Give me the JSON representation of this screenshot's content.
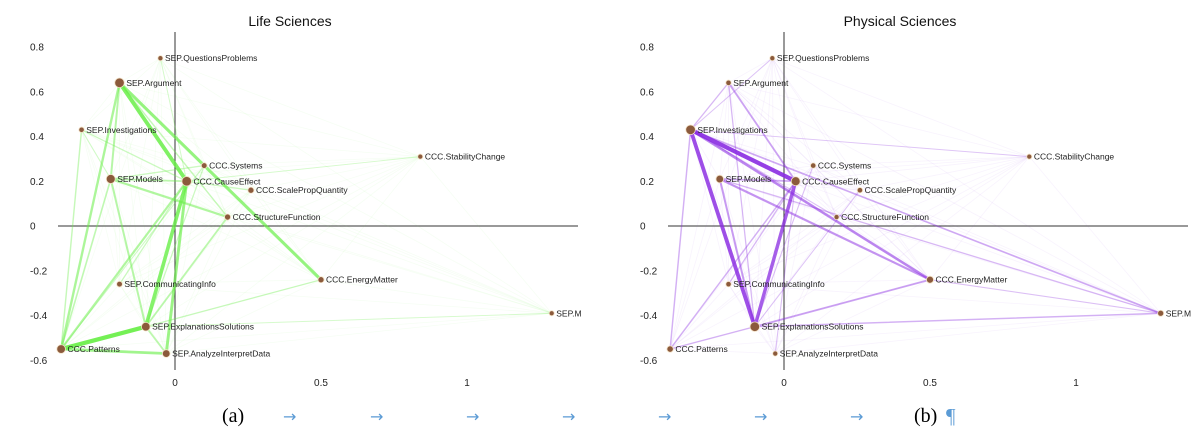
{
  "chart_data": [
    {
      "type": "scatter",
      "title": "Life Sciences",
      "xlim": [
        -0.4,
        1.4
      ],
      "ylim": [
        -0.6,
        0.8
      ],
      "xticks": [
        "0",
        "0.5",
        "1"
      ],
      "yticks": [
        "0.8",
        "0.6",
        "0.4",
        "0.2",
        "0",
        "-0.2",
        "-0.4",
        "-0.6"
      ],
      "grid": false,
      "edge_color": "#66ee44",
      "points": [
        {
          "label": "SEP.QuestionsProblems",
          "x": -0.05,
          "y": 0.75,
          "weight": 0.3
        },
        {
          "label": "SEP.Argument",
          "x": -0.19,
          "y": 0.64,
          "weight": 1.0
        },
        {
          "label": "SEP.Investigations",
          "x": -0.32,
          "y": 0.43,
          "weight": 0.35
        },
        {
          "label": "CCC.Systems",
          "x": 0.1,
          "y": 0.27,
          "weight": 0.4
        },
        {
          "label": "CCC.StabilityChange",
          "x": 0.84,
          "y": 0.31,
          "weight": 0.3
        },
        {
          "label": "SEP.Models",
          "x": -0.22,
          "y": 0.21,
          "weight": 0.9
        },
        {
          "label": "CCC.CauseEffect",
          "x": 0.04,
          "y": 0.2,
          "weight": 1.0
        },
        {
          "label": "CCC.ScalePropQuantity",
          "x": 0.26,
          "y": 0.16,
          "weight": 0.45
        },
        {
          "label": "CCC.StructureFunction",
          "x": 0.18,
          "y": 0.04,
          "weight": 0.45
        },
        {
          "label": "CCC.EnergyMatter",
          "x": 0.5,
          "y": -0.24,
          "weight": 0.45
        },
        {
          "label": "SEP.CommunicatingInfo",
          "x": -0.19,
          "y": -0.26,
          "weight": 0.4
        },
        {
          "label": "SEP.M",
          "x": 1.29,
          "y": -0.39,
          "weight": 0.3
        },
        {
          "label": "SEP.ExplanationsSolutions",
          "x": -0.1,
          "y": -0.45,
          "weight": 0.85
        },
        {
          "label": "CCC.Patterns",
          "x": -0.39,
          "y": -0.55,
          "weight": 0.85
        },
        {
          "label": "SEP.AnalyzeInterpretData",
          "x": -0.03,
          "y": -0.57,
          "weight": 0.7
        }
      ],
      "edges": [
        {
          "source": "SEP.Argument",
          "target": "CCC.CauseEffect",
          "weight": 0.9
        },
        {
          "source": "SEP.Argument",
          "target": "CCC.EnergyMatter",
          "weight": 0.7
        },
        {
          "source": "SEP.Argument",
          "target": "SEP.Models",
          "weight": 0.4
        },
        {
          "source": "SEP.Argument",
          "target": "CCC.Patterns",
          "weight": 0.5
        },
        {
          "source": "SEP.Argument",
          "target": "CCC.StructureFunction",
          "weight": 0.25
        },
        {
          "source": "CCC.CauseEffect",
          "target": "SEP.ExplanationsSolutions",
          "weight": 0.85
        },
        {
          "source": "CCC.CauseEffect",
          "target": "SEP.AnalyzeInterpretData",
          "weight": 0.65
        },
        {
          "source": "CCC.CauseEffect",
          "target": "CCC.Patterns",
          "weight": 0.45
        },
        {
          "source": "CCC.CauseEffect",
          "target": "SEP.Models",
          "weight": 0.35
        },
        {
          "source": "CCC.CauseEffect",
          "target": "CCC.ScalePropQuantity",
          "weight": 0.2
        },
        {
          "source": "SEP.ExplanationsSolutions",
          "target": "CCC.Patterns",
          "weight": 1.0
        },
        {
          "source": "CCC.Patterns",
          "target": "SEP.AnalyzeInterpretData",
          "weight": 0.6
        },
        {
          "source": "SEP.Models",
          "target": "CCC.StructureFunction",
          "weight": 0.45
        },
        {
          "source": "SEP.Models",
          "target": "SEP.ExplanationsSolutions",
          "weight": 0.4
        },
        {
          "source": "SEP.Models",
          "target": "CCC.Patterns",
          "weight": 0.3
        },
        {
          "source": "SEP.Models",
          "target": "CCC.Systems",
          "weight": 0.2
        },
        {
          "source": "SEP.ExplanationsSolutions",
          "target": "SEP.AnalyzeInterpretData",
          "weight": 0.35
        },
        {
          "source": "CCC.StructureFunction",
          "target": "SEP.ExplanationsSolutions",
          "weight": 0.35
        },
        {
          "source": "SEP.Investigations",
          "target": "CCC.Patterns",
          "weight": 0.25
        },
        {
          "source": "SEP.Investigations",
          "target": "CCC.CauseEffect",
          "weight": 0.2
        },
        {
          "source": "SEP.CommunicatingInfo",
          "target": "CCC.CauseEffect",
          "weight": 0.2
        },
        {
          "source": "CCC.Systems",
          "target": "SEP.ExplanationsSolutions",
          "weight": 0.2
        },
        {
          "source": "CCC.EnergyMatter",
          "target": "SEP.ExplanationsSolutions",
          "weight": 0.2
        },
        {
          "source": "SEP.QuestionsProblems",
          "target": "CCC.CauseEffect",
          "weight": 0.12
        },
        {
          "source": "CCC.StabilityChange",
          "target": "CCC.CauseEffect",
          "weight": 0.1
        },
        {
          "source": "SEP.M",
          "target": "SEP.ExplanationsSolutions",
          "weight": 0.1
        },
        {
          "source": "SEP.Investigations",
          "target": "SEP.Models",
          "weight": 0.15
        },
        {
          "source": "CCC.Systems",
          "target": "CCC.Patterns",
          "weight": 0.15
        }
      ]
    },
    {
      "type": "scatter",
      "title": "Physical Sciences",
      "xlim": [
        -0.4,
        1.4
      ],
      "ylim": [
        -0.6,
        0.8
      ],
      "xticks": [
        "0",
        "0.5",
        "1"
      ],
      "yticks": [
        "0.8",
        "0.6",
        "0.4",
        "0.2",
        "0",
        "-0.2",
        "-0.4",
        "-0.6"
      ],
      "grid": false,
      "edge_color": "#8a2be2",
      "points": [
        {
          "label": "SEP.QuestionsProblems",
          "x": -0.04,
          "y": 0.75,
          "weight": 0.3
        },
        {
          "label": "SEP.Argument",
          "x": -0.19,
          "y": 0.64,
          "weight": 0.35
        },
        {
          "label": "SEP.Investigations",
          "x": -0.32,
          "y": 0.43,
          "weight": 1.0
        },
        {
          "label": "CCC.Systems",
          "x": 0.1,
          "y": 0.27,
          "weight": 0.35
        },
        {
          "label": "CCC.StabilityChange",
          "x": 0.84,
          "y": 0.31,
          "weight": 0.3
        },
        {
          "label": "SEP.Models",
          "x": -0.22,
          "y": 0.21,
          "weight": 0.7
        },
        {
          "label": "CCC.CauseEffect",
          "x": 0.04,
          "y": 0.2,
          "weight": 0.9
        },
        {
          "label": "CCC.ScalePropQuantity",
          "x": 0.26,
          "y": 0.16,
          "weight": 0.35
        },
        {
          "label": "CCC.StructureFunction",
          "x": 0.18,
          "y": 0.04,
          "weight": 0.3
        },
        {
          "label": "CCC.EnergyMatter",
          "x": 0.5,
          "y": -0.24,
          "weight": 0.6
        },
        {
          "label": "SEP.CommunicatingInfo",
          "x": -0.19,
          "y": -0.26,
          "weight": 0.35
        },
        {
          "label": "SEP.M",
          "x": 1.29,
          "y": -0.39,
          "weight": 0.45
        },
        {
          "label": "SEP.ExplanationsSolutions",
          "x": -0.1,
          "y": -0.45,
          "weight": 1.0
        },
        {
          "label": "CCC.Patterns",
          "x": -0.39,
          "y": -0.55,
          "weight": 0.5
        },
        {
          "label": "SEP.AnalyzeInterpretData",
          "x": -0.03,
          "y": -0.57,
          "weight": 0.3
        }
      ],
      "edges": [
        {
          "source": "SEP.Investigations",
          "target": "CCC.CauseEffect",
          "weight": 1.0
        },
        {
          "source": "SEP.Investigations",
          "target": "SEP.ExplanationsSolutions",
          "weight": 0.9
        },
        {
          "source": "CCC.CauseEffect",
          "target": "SEP.ExplanationsSolutions",
          "weight": 0.8
        },
        {
          "source": "SEP.Investigations",
          "target": "CCC.EnergyMatter",
          "weight": 0.55
        },
        {
          "source": "SEP.Models",
          "target": "CCC.EnergyMatter",
          "weight": 0.45
        },
        {
          "source": "SEP.Models",
          "target": "SEP.ExplanationsSolutions",
          "weight": 0.4
        },
        {
          "source": "SEP.Argument",
          "target": "CCC.CauseEffect",
          "weight": 0.35
        },
        {
          "source": "SEP.Investigations",
          "target": "SEP.M",
          "weight": 0.3
        },
        {
          "source": "SEP.ExplanationsSolutions",
          "target": "CCC.EnergyMatter",
          "weight": 0.35
        },
        {
          "source": "SEP.Models",
          "target": "SEP.M",
          "weight": 0.2
        },
        {
          "source": "SEP.ExplanationsSolutions",
          "target": "SEP.M",
          "weight": 0.25
        },
        {
          "source": "CCC.Patterns",
          "target": "SEP.Investigations",
          "weight": 0.25
        },
        {
          "source": "CCC.Patterns",
          "target": "CCC.CauseEffect",
          "weight": 0.25
        },
        {
          "source": "CCC.Patterns",
          "target": "SEP.ExplanationsSolutions",
          "weight": 0.2
        },
        {
          "source": "SEP.CommunicatingInfo",
          "target": "CCC.CauseEffect",
          "weight": 0.2
        },
        {
          "source": "SEP.Models",
          "target": "CCC.CauseEffect",
          "weight": 0.3
        },
        {
          "source": "SEP.Argument",
          "target": "SEP.ExplanationsSolutions",
          "weight": 0.2
        },
        {
          "source": "CCC.Systems",
          "target": "SEP.ExplanationsSolutions",
          "weight": 0.15
        },
        {
          "source": "CCC.StructureFunction",
          "target": "SEP.Investigations",
          "weight": 0.15
        },
        {
          "source": "CCC.StabilityChange",
          "target": "SEP.Investigations",
          "weight": 0.1
        },
        {
          "source": "CCC.ScalePropQuantity",
          "target": "SEP.ExplanationsSolutions",
          "weight": 0.12
        },
        {
          "source": "SEP.QuestionsProblems",
          "target": "SEP.Investigations",
          "weight": 0.12
        },
        {
          "source": "CCC.EnergyMatter",
          "target": "SEP.M",
          "weight": 0.15
        },
        {
          "source": "SEP.AnalyzeInterpretData",
          "target": "CCC.CauseEffect",
          "weight": 0.15
        },
        {
          "source": "SEP.Argument",
          "target": "SEP.Investigations",
          "weight": 0.2
        }
      ]
    }
  ],
  "captions": {
    "left": "(a)",
    "right": "(b)",
    "pilcrow": "¶",
    "tab_arrow": "→"
  }
}
